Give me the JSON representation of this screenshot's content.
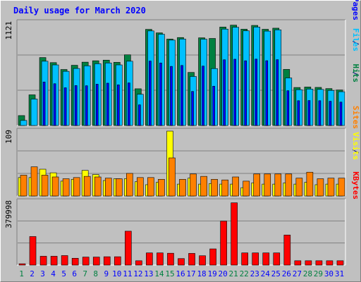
{
  "chart_data": [
    {
      "type": "bar",
      "title": "Daily usage for March 2020",
      "ylabel_parts": [
        "Pages",
        "Files",
        "Hits"
      ],
      "y_max_label": "1121",
      "ylim": [
        0,
        1121
      ],
      "categories": [
        "1",
        "2",
        "3",
        "4",
        "5",
        "6",
        "7",
        "8",
        "9",
        "10",
        "11",
        "12",
        "13",
        "14",
        "15",
        "16",
        "17",
        "18",
        "19",
        "20",
        "21",
        "22",
        "23",
        "24",
        "25",
        "26",
        "27",
        "28",
        "29",
        "30",
        "31"
      ],
      "weekend_days": [
        "1",
        "7",
        "8",
        "14",
        "15",
        "21",
        "22",
        "28",
        "29"
      ],
      "series": [
        {
          "name": "Hits",
          "color": "#008040",
          "values": [
            108,
            334,
            740,
            685,
            610,
            656,
            690,
            705,
            712,
            688,
            770,
            400,
            1047,
            1009,
            941,
            958,
            578,
            955,
            948,
            1072,
            1093,
            1049,
            1090,
            1048,
            1060,
            611,
            414,
            419,
            415,
            402,
            387
          ]
        },
        {
          "name": "Files",
          "color": "#00c0ff",
          "values": [
            55,
            288,
            700,
            660,
            590,
            621,
            650,
            673,
            681,
            660,
            700,
            340,
            1030,
            994,
            930,
            942,
            534,
            940,
            620,
            1050,
            1070,
            1031,
            1072,
            1028,
            1042,
            518,
            390,
            397,
            393,
            382,
            368
          ]
        },
        {
          "name": "Pages",
          "color": "#0000ff",
          "values": [
            0,
            0,
            474,
            455,
            411,
            435,
            433,
            450,
            461,
            443,
            464,
            225,
            702,
            681,
            644,
            654,
            371,
            647,
            428,
            716,
            722,
            705,
            723,
            706,
            717,
            379,
            270,
            272,
            270,
            264,
            255
          ]
        }
      ]
    },
    {
      "type": "bar",
      "ylabel_parts": [
        "Sites",
        "Visits"
      ],
      "y_max_label": "109",
      "ylim": [
        0,
        109
      ],
      "categories": [
        "1",
        "2",
        "3",
        "4",
        "5",
        "6",
        "7",
        "8",
        "9",
        "10",
        "11",
        "12",
        "13",
        "14",
        "15",
        "16",
        "17",
        "18",
        "19",
        "20",
        "21",
        "22",
        "23",
        "24",
        "25",
        "26",
        "27",
        "28",
        "29",
        "30",
        "31"
      ],
      "series": [
        {
          "name": "Visits",
          "color": "#ffff00",
          "values": [
            31,
            31,
            45,
            39,
            25,
            28,
            43,
            36,
            26,
            29,
            29,
            24,
            19,
            23,
            109,
            20,
            30,
            20,
            21,
            20,
            20,
            14,
            22,
            20,
            20,
            22,
            20,
            23,
            19,
            20,
            20
          ]
        },
        {
          "name": "Sites",
          "color": "#ff8000",
          "values": [
            35,
            49,
            35,
            32,
            29,
            31,
            33,
            32,
            30,
            29,
            38,
            31,
            31,
            28,
            64,
            28,
            37,
            33,
            28,
            27,
            32,
            25,
            37,
            37,
            37,
            37,
            30,
            40,
            29,
            30,
            30
          ]
        }
      ]
    },
    {
      "type": "bar",
      "ylabel_parts": [
        "KBytes"
      ],
      "y_max_label": "379998",
      "ylim": [
        0,
        379998
      ],
      "categories": [
        "1",
        "2",
        "3",
        "4",
        "5",
        "6",
        "7",
        "8",
        "9",
        "10",
        "11",
        "12",
        "13",
        "14",
        "15",
        "16",
        "17",
        "18",
        "19",
        "20",
        "21",
        "22",
        "23",
        "24",
        "25",
        "26",
        "27",
        "28",
        "29",
        "30",
        "31"
      ],
      "series": [
        {
          "name": "KBytes",
          "color": "#ff0000",
          "values": [
            8000,
            171000,
            53000,
            53000,
            57000,
            41000,
            48000,
            48000,
            50000,
            50000,
            203000,
            26000,
            73000,
            73000,
            71000,
            39000,
            70000,
            56000,
            97000,
            263000,
            373000,
            73000,
            73000,
            73000,
            73000,
            180000,
            26000,
            26000,
            26000,
            26000,
            26000
          ]
        }
      ]
    }
  ],
  "colors": {
    "title": "#0000ff",
    "day_label": "#0000ff",
    "weekend_label": "#008040",
    "value_label": "#000000",
    "plot_bg": "#c0c0c0",
    "grid": "#808080",
    "bar_outline": "#000000"
  }
}
